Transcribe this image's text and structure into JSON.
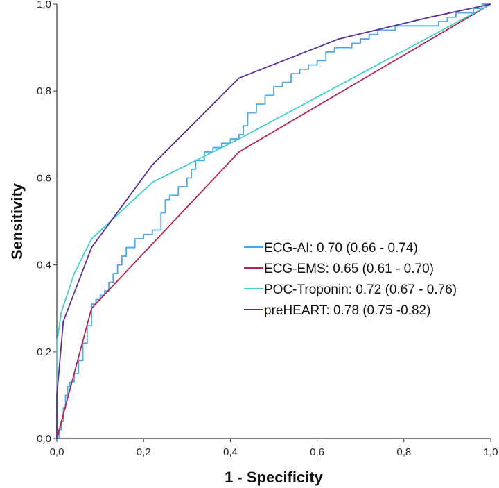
{
  "chart_data": {
    "type": "line",
    "title": "",
    "xlabel": "1 - Specificity",
    "ylabel": "Sensitivity",
    "xlim": [
      0,
      1
    ],
    "ylim": [
      0,
      1
    ],
    "xticks": [
      "0,0",
      "0,2",
      "0,4",
      "0,6",
      "0,8",
      "1,0"
    ],
    "yticks": [
      "0,0",
      "0,2",
      "0,4",
      "0,6",
      "0,8",
      "1,0"
    ],
    "grid": false,
    "legend_position": "center-right",
    "series": [
      {
        "name": "ECG-AI: 0.70 (0.66 - 0.74)",
        "color": "#4da6e8",
        "step": true,
        "points": [
          [
            0,
            0
          ],
          [
            0.005,
            0.02
          ],
          [
            0.01,
            0.04
          ],
          [
            0.015,
            0.07
          ],
          [
            0.02,
            0.1
          ],
          [
            0.025,
            0.12
          ],
          [
            0.03,
            0.13
          ],
          [
            0.04,
            0.15
          ],
          [
            0.05,
            0.18
          ],
          [
            0.06,
            0.22
          ],
          [
            0.07,
            0.26
          ],
          [
            0.08,
            0.31
          ],
          [
            0.09,
            0.32
          ],
          [
            0.1,
            0.33
          ],
          [
            0.11,
            0.34
          ],
          [
            0.12,
            0.36
          ],
          [
            0.13,
            0.38
          ],
          [
            0.14,
            0.4
          ],
          [
            0.15,
            0.42
          ],
          [
            0.16,
            0.44
          ],
          [
            0.18,
            0.46
          ],
          [
            0.2,
            0.47
          ],
          [
            0.22,
            0.48
          ],
          [
            0.24,
            0.52
          ],
          [
            0.25,
            0.55
          ],
          [
            0.26,
            0.56
          ],
          [
            0.28,
            0.58
          ],
          [
            0.3,
            0.6
          ],
          [
            0.31,
            0.62
          ],
          [
            0.32,
            0.64
          ],
          [
            0.34,
            0.66
          ],
          [
            0.36,
            0.67
          ],
          [
            0.38,
            0.68
          ],
          [
            0.4,
            0.69
          ],
          [
            0.42,
            0.7
          ],
          [
            0.43,
            0.72
          ],
          [
            0.44,
            0.75
          ],
          [
            0.46,
            0.77
          ],
          [
            0.48,
            0.79
          ],
          [
            0.5,
            0.81
          ],
          [
            0.52,
            0.82
          ],
          [
            0.54,
            0.84
          ],
          [
            0.56,
            0.85
          ],
          [
            0.58,
            0.86
          ],
          [
            0.6,
            0.87
          ],
          [
            0.62,
            0.89
          ],
          [
            0.64,
            0.9
          ],
          [
            0.66,
            0.9
          ],
          [
            0.68,
            0.91
          ],
          [
            0.7,
            0.92
          ],
          [
            0.72,
            0.93
          ],
          [
            0.74,
            0.94
          ],
          [
            0.76,
            0.94
          ],
          [
            0.78,
            0.95
          ],
          [
            0.8,
            0.95
          ],
          [
            0.82,
            0.95
          ],
          [
            0.84,
            0.95
          ],
          [
            0.86,
            0.95
          ],
          [
            0.88,
            0.96
          ],
          [
            0.9,
            0.97
          ],
          [
            0.92,
            0.98
          ],
          [
            0.94,
            0.98
          ],
          [
            0.96,
            0.99
          ],
          [
            0.98,
            1.0
          ],
          [
            1.0,
            1.0
          ]
        ]
      },
      {
        "name": "ECG-EMS: 0.65 (0.61 - 0.70)",
        "color": "#b5244f",
        "step": false,
        "points": [
          [
            0,
            0
          ],
          [
            0.08,
            0.3
          ],
          [
            0.42,
            0.66
          ],
          [
            1.0,
            1.0
          ]
        ]
      },
      {
        "name": "POC-Troponin: 0.72 (0.67 - 0.76)",
        "color": "#3fd1c9",
        "step": false,
        "points": [
          [
            0,
            0
          ],
          [
            0,
            0.22
          ],
          [
            0.01,
            0.29
          ],
          [
            0.04,
            0.38
          ],
          [
            0.08,
            0.46
          ],
          [
            0.22,
            0.59
          ],
          [
            0.42,
            0.69
          ],
          [
            1.0,
            1.0
          ]
        ]
      },
      {
        "name": "preHEART: 0.78 (0.75 -0.82)",
        "color": "#5b2d96",
        "step": false,
        "points": [
          [
            0,
            0
          ],
          [
            0,
            0.1
          ],
          [
            0.015,
            0.27
          ],
          [
            0.08,
            0.44
          ],
          [
            0.22,
            0.63
          ],
          [
            0.42,
            0.83
          ],
          [
            0.65,
            0.92
          ],
          [
            0.86,
            0.97
          ],
          [
            1.0,
            1.0
          ]
        ]
      }
    ]
  }
}
